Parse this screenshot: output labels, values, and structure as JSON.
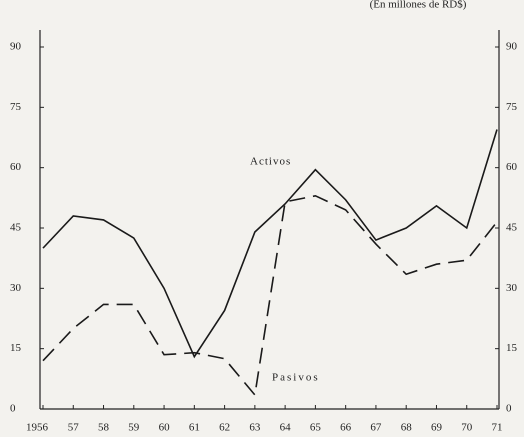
{
  "chart_data": {
    "type": "line",
    "subtitle": "(En millones de RD$)",
    "categories": [
      "1956",
      "57",
      "58",
      "59",
      "60",
      "61",
      "62",
      "63",
      "64",
      "65",
      "66",
      "67",
      "68",
      "69",
      "70",
      "71"
    ],
    "series": [
      {
        "name": "Activos",
        "color": "#1a1a1a",
        "dash": false,
        "values": [
          40,
          48,
          47,
          42.5,
          30,
          13,
          24.5,
          44,
          51,
          59.5,
          52,
          42,
          45,
          50.5,
          45,
          69.5
        ]
      },
      {
        "name": "Pasivos",
        "color": "#1a1a1a",
        "dash": true,
        "values": [
          12,
          20,
          26,
          26,
          13.5,
          14,
          12.5,
          3.5,
          51.5,
          53,
          49.5,
          41,
          33.5,
          36,
          37,
          46.5
        ]
      }
    ],
    "ylim": [
      0,
      90
    ],
    "yticks": [
      0,
      15,
      30,
      45,
      60,
      75,
      90
    ],
    "y2lim": [
      0,
      90
    ],
    "y2ticks": [
      0,
      15,
      30,
      45,
      60,
      75,
      90
    ]
  }
}
